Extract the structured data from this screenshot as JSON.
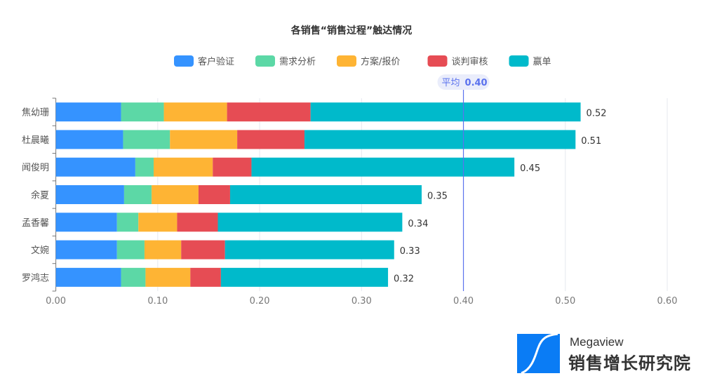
{
  "chart_data": {
    "type": "bar",
    "orientation": "horizontal",
    "stacked": true,
    "title": "各销售“销售过程”触达情况",
    "categories": [
      "焦幼珊",
      "杜晨曦",
      "闻俊明",
      "余夏",
      "孟香馨",
      "文婉",
      "罗鸿志"
    ],
    "series": [
      {
        "name": "客户验证",
        "color": "#3593ff",
        "values": [
          0.064,
          0.066,
          0.078,
          0.067,
          0.06,
          0.06,
          0.064
        ]
      },
      {
        "name": "需求分析",
        "color": "#5cd8a6",
        "values": [
          0.042,
          0.046,
          0.018,
          0.027,
          0.021,
          0.027,
          0.024
        ]
      },
      {
        "name": "方案/报价",
        "color": "#feb434",
        "values": [
          0.062,
          0.066,
          0.058,
          0.046,
          0.038,
          0.036,
          0.044
        ]
      },
      {
        "name": "谈判审核",
        "color": "#e64c54",
        "values": [
          0.082,
          0.066,
          0.038,
          0.031,
          0.04,
          0.043,
          0.03
        ]
      },
      {
        "name": "赢单",
        "color": "#00bacb",
        "values": [
          0.265,
          0.266,
          0.258,
          0.188,
          0.181,
          0.166,
          0.164
        ]
      }
    ],
    "total_labels": [
      "0.52",
      "0.51",
      "0.45",
      "0.35",
      "0.34",
      "0.33",
      "0.32"
    ],
    "xlim": [
      0,
      0.6
    ],
    "xticks": [
      "0.00",
      "0.10",
      "0.20",
      "0.30",
      "0.40",
      "0.50",
      "0.60"
    ],
    "grid": true,
    "legend": "top-center",
    "average": {
      "label": "平均",
      "value": 0.4,
      "value_label": "0.40",
      "color": "#5b72ee"
    }
  },
  "logo": {
    "en": "Megaview",
    "cn": "销售增长研究院",
    "color": "#0a7cf5"
  }
}
